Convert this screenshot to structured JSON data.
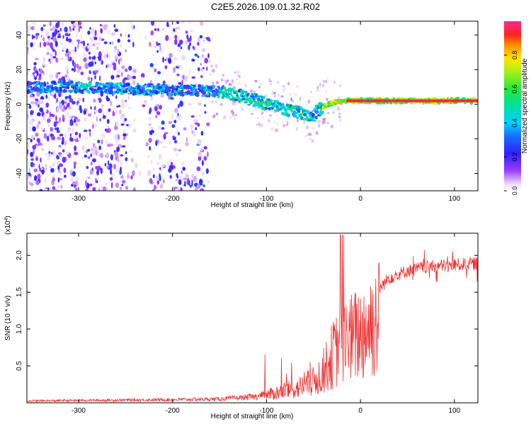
{
  "figure": {
    "title": "C2E5.2026.109.01.32.R02"
  },
  "chart_data": [
    {
      "type": "heatmap",
      "xlabel": "Height of straight line (km)",
      "ylabel": "Frequency (Hz)",
      "xlim": [
        -355,
        125
      ],
      "ylim": [
        -50,
        48
      ],
      "xticks": [
        -300,
        -200,
        -100,
        0,
        100
      ],
      "yticks": [
        -40,
        -20,
        0,
        20,
        40
      ],
      "ridge": {
        "x": [
          -300,
          -250,
          -200,
          -170,
          -150,
          -130,
          -110,
          -90,
          -70,
          -55,
          -50,
          -45,
          -35,
          -25,
          -15,
          0,
          20,
          50,
          100,
          125
        ],
        "freq": [
          10,
          9,
          8,
          8,
          7,
          5,
          2,
          -1,
          -4,
          -6,
          -7,
          -4,
          0,
          1,
          2,
          2,
          2,
          2,
          2,
          2
        ]
      },
      "colorbar": {
        "label": "Normalized spectral amplitude",
        "range": [
          0,
          1
        ],
        "ticks": [
          0.0,
          0.2,
          0.4,
          0.6,
          0.8
        ],
        "tick_labels": [
          "0.0",
          "0.2",
          "0.4",
          "0.6",
          "0.8"
        ]
      }
    },
    {
      "type": "line",
      "xlabel": "Height of straight line (km)",
      "ylabel": "SNR (10 * v/v)",
      "exponent_label": "(x10",
      "exponent_power": "4",
      "exponent_close": ")",
      "xlim": [
        -355,
        125
      ],
      "ylim": [
        0,
        2.3
      ],
      "xticks": [
        -300,
        -200,
        -100,
        0,
        100
      ],
      "yticks": [
        0.5,
        1.0,
        1.5,
        2.0
      ],
      "ytick_labels": [
        "0.5",
        "1.0",
        "1.5",
        "2.0"
      ],
      "color": "#ee3333",
      "envelope": {
        "x": [
          -355,
          -200,
          -150,
          -110,
          -90,
          -70,
          -50,
          -40,
          -30,
          -20,
          -10,
          0,
          10,
          20,
          30,
          50,
          70,
          100,
          125
        ],
        "snr": [
          0.03,
          0.05,
          0.06,
          0.1,
          0.18,
          0.25,
          0.38,
          0.55,
          0.85,
          1.05,
          1.15,
          1.25,
          1.4,
          1.55,
          1.7,
          1.8,
          1.85,
          1.88,
          1.9
        ]
      }
    }
  ]
}
